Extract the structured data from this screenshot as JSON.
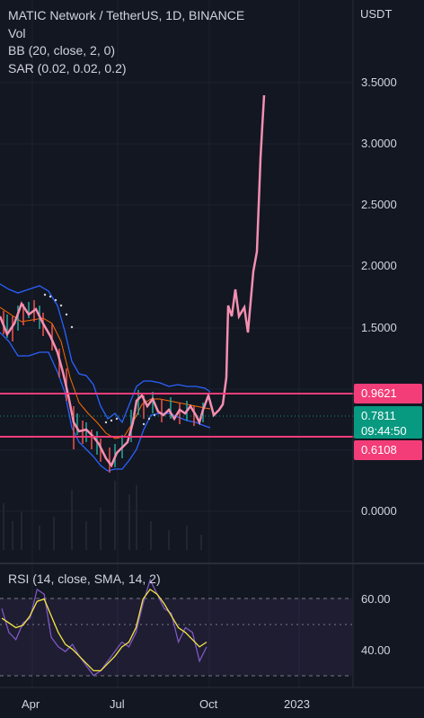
{
  "legend": {
    "symbol": "MATIC Network / TetherUS, 1D, BINANCE",
    "vol": "Vol",
    "bb": "BB (20, close, 2, 0)",
    "sar": "SAR (0.02, 0.02, 0.2)"
  },
  "currency": "USDT",
  "price_ticks": [
    "3.5000",
    "3.0000",
    "2.5000",
    "2.0000",
    "1.5000",
    "0.0000"
  ],
  "resistance_label": "0.9621",
  "support_label": "0.6108",
  "last_price": "0.7811",
  "countdown": "09:44:50",
  "rsi": {
    "title": "RSI (14, close, SMA, 14, 2)",
    "ticks": [
      "60.00",
      "40.00"
    ]
  },
  "time_axis": [
    "Apr",
    "Jul",
    "Oct",
    "2023"
  ],
  "colors": {
    "background": "#131722",
    "level_line": "#f23d79",
    "projection": "#f48fb1",
    "last_price_badge": "#089981",
    "bollinger": "#2962ff",
    "rsi_line": "#7e57c2",
    "rsi_sma": "#f5e642",
    "rsi_band": "#7e57c2"
  },
  "chart_data": [
    {
      "type": "line",
      "title": "MATIC Network / TetherUS, 1D, BINANCE",
      "ylabel": "USDT",
      "ylim": [
        0,
        3.7
      ],
      "x_ticks": [
        "Apr",
        "Jul",
        "Oct",
        "2023"
      ],
      "levels": [
        0.9621,
        0.6108
      ],
      "last_price": 0.7811,
      "series": [
        {
          "x": [
            "Mar",
            "Apr",
            "Apr",
            "May",
            "May",
            "Jun",
            "Jun",
            "Jul",
            "Jul",
            "Aug",
            "Aug",
            "Sep",
            "Sep",
            "Oct"
          ],
          "values": [
            1.85,
            1.7,
            1.55,
            1.3,
            0.95,
            0.62,
            0.45,
            0.4,
            0.55,
            0.92,
            0.88,
            0.84,
            0.8,
            0.78
          ]
        },
        {
          "x": [
            "Oct",
            "Oct",
            "Oct",
            "Oct",
            "Nov",
            "Nov",
            "Nov",
            "Nov",
            "Dec",
            "Dec"
          ],
          "values": [
            0.8,
            0.85,
            0.96,
            1.65,
            1.75,
            1.55,
            1.85,
            2.15,
            2.9,
            3.4
          ]
        }
      ]
    },
    {
      "type": "line",
      "title": "RSI (14, close, SMA, 14, 2)",
      "ylim": [
        25,
        75
      ],
      "y_ticks": [
        40,
        60
      ],
      "series": [
        {
          "values": [
            58,
            48,
            45,
            52,
            54,
            66,
            64,
            46,
            42,
            40,
            43,
            38,
            34,
            30,
            32,
            36,
            40,
            44,
            42,
            48,
            60,
            70,
            64,
            58,
            56,
            44,
            50,
            48,
            36,
            42
          ]
        },
        {
          "values": [
            54,
            52,
            50,
            51,
            55,
            61,
            62,
            55,
            48,
            43,
            41,
            38,
            35,
            32,
            32,
            35,
            38,
            42,
            44,
            50,
            62,
            66,
            64,
            60,
            55,
            50,
            48,
            45,
            42,
            44
          ]
        }
      ]
    }
  ]
}
